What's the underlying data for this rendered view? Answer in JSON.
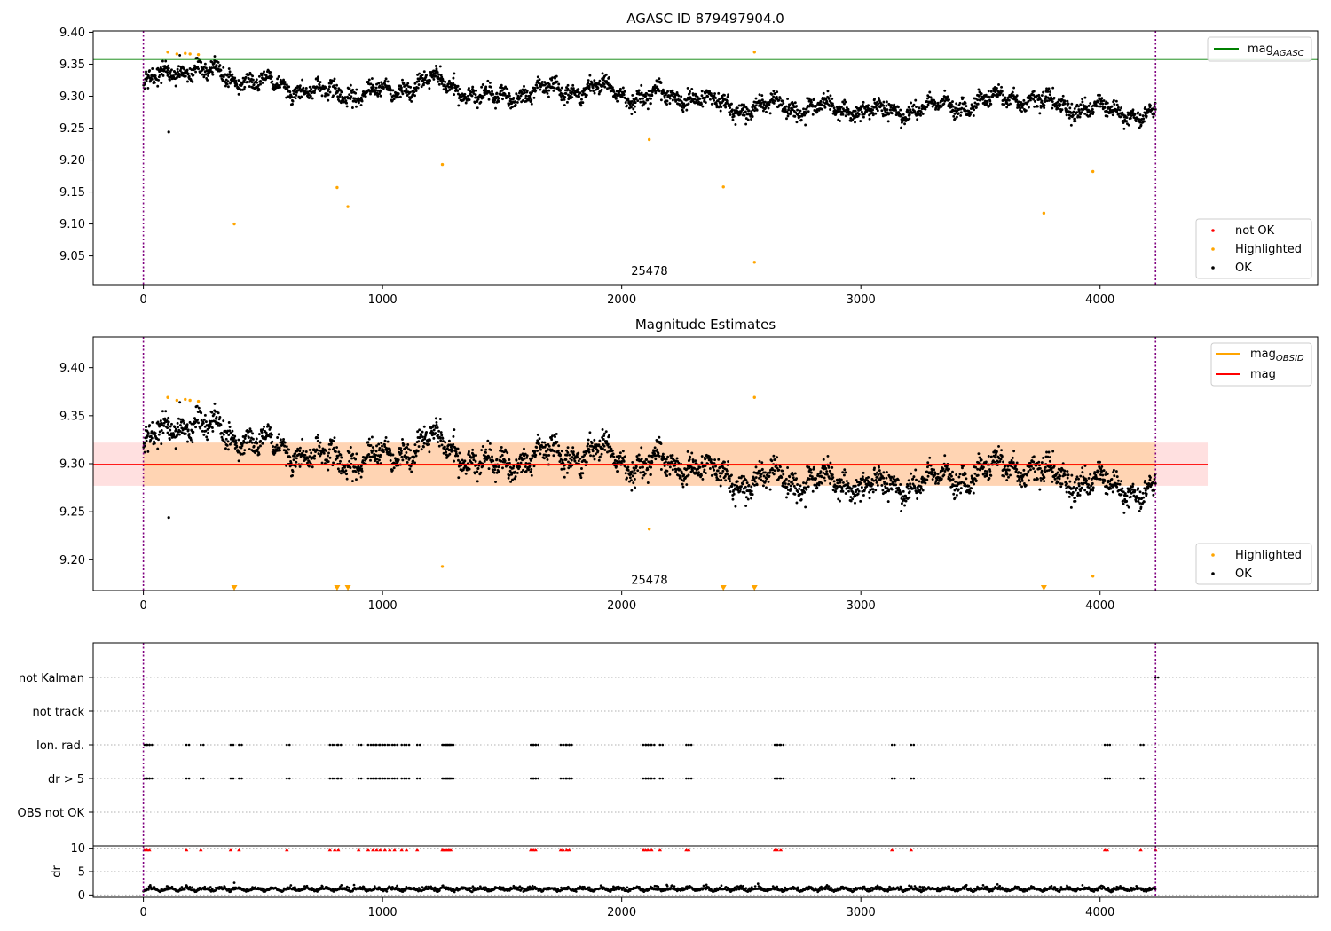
{
  "chart_data": [
    {
      "id": "panel1",
      "type": "scatter",
      "title": "AGASC ID 879497904.0",
      "xlim": [
        -210,
        4910
      ],
      "ylim": [
        9.005,
        9.402
      ],
      "xticks": [
        0,
        1000,
        2000,
        3000,
        4000
      ],
      "yticks": [
        9.05,
        9.1,
        9.15,
        9.2,
        9.25,
        9.3,
        9.35,
        9.4
      ],
      "vlines": [
        0,
        4232
      ],
      "hline": {
        "label": "mag",
        "label_sub": "AGASC",
        "y": 9.358,
        "x_end": 4232,
        "color": "#008000"
      },
      "annotation": {
        "text": "25478",
        "x": 2116,
        "y": 9.02
      },
      "ok_trend": [
        [
          0,
          9.315
        ],
        [
          100,
          9.335
        ],
        [
          200,
          9.345
        ],
        [
          300,
          9.335
        ],
        [
          500,
          9.32
        ],
        [
          750,
          9.305
        ],
        [
          1000,
          9.305
        ],
        [
          1100,
          9.315
        ],
        [
          1200,
          9.325
        ],
        [
          1300,
          9.315
        ],
        [
          1450,
          9.295
        ],
        [
          1650,
          9.31
        ],
        [
          1900,
          9.31
        ],
        [
          2100,
          9.3
        ],
        [
          2300,
          9.3
        ],
        [
          2500,
          9.28
        ],
        [
          2700,
          9.285
        ],
        [
          2900,
          9.28
        ],
        [
          3100,
          9.275
        ],
        [
          3300,
          9.283
        ],
        [
          3500,
          9.29
        ],
        [
          3650,
          9.3
        ],
        [
          3800,
          9.285
        ],
        [
          4000,
          9.28
        ],
        [
          4232,
          9.268
        ]
      ],
      "ok_outliers": [
        {
          "x": 106,
          "y": 9.244
        }
      ],
      "highlighted": [
        {
          "x": 102,
          "y": 9.369
        },
        {
          "x": 140,
          "y": 9.366
        },
        {
          "x": 175,
          "y": 9.367
        },
        {
          "x": 195,
          "y": 9.366
        },
        {
          "x": 230,
          "y": 9.365
        },
        {
          "x": 380,
          "y": 9.1
        },
        {
          "x": 810,
          "y": 9.157
        },
        {
          "x": 855,
          "y": 9.127
        },
        {
          "x": 1250,
          "y": 9.193
        },
        {
          "x": 2115,
          "y": 9.232
        },
        {
          "x": 2425,
          "y": 9.158
        },
        {
          "x": 2555,
          "y": 9.369
        },
        {
          "x": 2555,
          "y": 9.04
        },
        {
          "x": 3765,
          "y": 9.117
        },
        {
          "x": 3970,
          "y": 9.182
        }
      ],
      "legend_lines": [
        {
          "label": "mag",
          "label_sub": "AGASC",
          "color": "#008000"
        }
      ],
      "legend_points": [
        {
          "label": "not OK",
          "color": "#ff0000"
        },
        {
          "label": "Highlighted",
          "color": "#ffa500"
        },
        {
          "label": "OK",
          "color": "#000000"
        }
      ]
    },
    {
      "id": "panel2",
      "type": "scatter",
      "title": "Magnitude Estimates",
      "xlim": [
        -210,
        4910
      ],
      "ylim": [
        9.168,
        9.432
      ],
      "xticks": [
        0,
        1000,
        2000,
        3000,
        4000
      ],
      "yticks": [
        9.2,
        9.25,
        9.3,
        9.35,
        9.4
      ],
      "vlines": [
        0,
        4232
      ],
      "mag_line": {
        "label": "mag",
        "y": 9.299,
        "x_end": 4450,
        "color": "#ff0000"
      },
      "mag_band": [
        9.277,
        9.322
      ],
      "obsid_band": [
        9.277,
        9.322
      ],
      "obsid_line": {
        "label": "mag",
        "label_sub": "OBSID",
        "color": "#ffa500"
      },
      "annotation": {
        "text": "25478",
        "x": 2116,
        "y": 9.175
      },
      "ok_trend": [
        [
          0,
          9.315
        ],
        [
          100,
          9.335
        ],
        [
          200,
          9.345
        ],
        [
          300,
          9.335
        ],
        [
          500,
          9.32
        ],
        [
          750,
          9.305
        ],
        [
          1000,
          9.305
        ],
        [
          1100,
          9.315
        ],
        [
          1200,
          9.325
        ],
        [
          1300,
          9.315
        ],
        [
          1450,
          9.295
        ],
        [
          1650,
          9.31
        ],
        [
          1900,
          9.31
        ],
        [
          2100,
          9.3
        ],
        [
          2300,
          9.3
        ],
        [
          2500,
          9.28
        ],
        [
          2700,
          9.285
        ],
        [
          2900,
          9.28
        ],
        [
          3100,
          9.275
        ],
        [
          3300,
          9.283
        ],
        [
          3500,
          9.29
        ],
        [
          3650,
          9.3
        ],
        [
          3800,
          9.285
        ],
        [
          4000,
          9.28
        ],
        [
          4232,
          9.268
        ]
      ],
      "ok_outliers": [
        {
          "x": 106,
          "y": 9.244
        }
      ],
      "highlighted": [
        {
          "x": 102,
          "y": 9.369
        },
        {
          "x": 140,
          "y": 9.366
        },
        {
          "x": 175,
          "y": 9.367
        },
        {
          "x": 195,
          "y": 9.366
        },
        {
          "x": 230,
          "y": 9.365
        },
        {
          "x": 2555,
          "y": 9.369
        },
        {
          "x": 2115,
          "y": 9.232
        },
        {
          "x": 1250,
          "y": 9.193
        },
        {
          "x": 3970,
          "y": 9.183
        }
      ],
      "highlighted_offscale_x": [
        380,
        810,
        855,
        2425,
        2555,
        3765
      ],
      "legend_lines": [
        {
          "label": "mag",
          "label_sub": "OBSID",
          "color": "#ffa500"
        },
        {
          "label": "mag",
          "label_sub": "",
          "color": "#ff0000"
        }
      ],
      "legend_points": [
        {
          "label": "Highlighted",
          "color": "#ffa500"
        },
        {
          "label": "OK",
          "color": "#000000"
        }
      ]
    },
    {
      "id": "panel3",
      "type": "scatter",
      "xlim": [
        -210,
        4910
      ],
      "vlines": [
        0,
        4232
      ],
      "categories": [
        "not Kalman",
        "not track",
        "Ion. rad.",
        "dr > 5",
        "OBS not OK"
      ],
      "flag_rows": {
        "not Kalman": [
          4232
        ],
        "not track": [],
        "Ion. rad.": [
          5,
          15,
          25,
          180,
          240,
          365,
          400,
          600,
          780,
          800,
          815,
          900,
          940,
          960,
          975,
          990,
          1010,
          1030,
          1050,
          1080,
          1100,
          1145,
          1250,
          1255,
          1262,
          1270,
          1278,
          1285,
          1620,
          1630,
          1640,
          1745,
          1755,
          1770,
          1780,
          2090,
          2100,
          2110,
          2125,
          2160,
          2270,
          2280,
          2640,
          2650,
          2665,
          3130,
          3210,
          4020,
          4030,
          4170
        ],
        "dr > 5": [
          5,
          15,
          25,
          180,
          240,
          365,
          400,
          600,
          780,
          800,
          815,
          900,
          940,
          960,
          975,
          990,
          1010,
          1030,
          1050,
          1080,
          1100,
          1145,
          1250,
          1255,
          1262,
          1270,
          1278,
          1285,
          1620,
          1630,
          1640,
          1745,
          1755,
          1770,
          1780,
          2090,
          2100,
          2110,
          2125,
          2160,
          2270,
          2280,
          2640,
          2650,
          2665,
          3130,
          3210,
          4020,
          4030,
          4170
        ],
        "OBS not OK": []
      }
    },
    {
      "id": "panel4",
      "type": "scatter",
      "ylabel": "dr",
      "xlim": [
        -210,
        4910
      ],
      "ylim": [
        -0.5,
        10.5
      ],
      "xticks": [
        0,
        1000,
        2000,
        3000,
        4000
      ],
      "yticks": [
        0,
        5,
        10
      ],
      "vlines": [
        0,
        4232
      ],
      "red_markers_y": 9.7,
      "red_markers_x": [
        5,
        15,
        25,
        180,
        240,
        365,
        400,
        600,
        780,
        800,
        815,
        900,
        940,
        960,
        975,
        990,
        1010,
        1030,
        1050,
        1080,
        1100,
        1145,
        1250,
        1255,
        1262,
        1270,
        1278,
        1285,
        1620,
        1630,
        1640,
        1745,
        1755,
        1770,
        1780,
        2090,
        2100,
        2110,
        2125,
        2160,
        2270,
        2280,
        2640,
        2650,
        2665,
        3130,
        3210,
        4020,
        4030,
        4170,
        4232
      ],
      "dr_typical": 1.0
    }
  ]
}
